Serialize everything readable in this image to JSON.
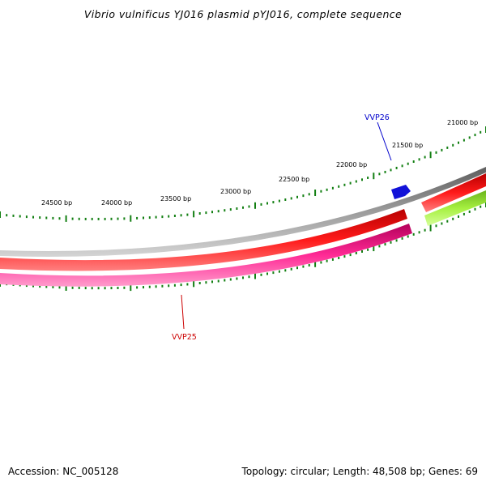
{
  "title": "Vibrio vulnificus YJ016 plasmid pYJ016, complete sequence",
  "footer": {
    "accession": "Accession: NC_005128",
    "summary": "Topology: circular; Length: 48,508 bp; Genes: 69"
  },
  "ruler": {
    "labels": [
      "21000 bp",
      "21500 bp",
      "22000 bp",
      "22500 bp",
      "23000 bp",
      "23500 bp",
      "24000 bp",
      "24500 bp"
    ],
    "color": "#127f12"
  },
  "gene_labels": [
    {
      "text": "VVP26",
      "color": "#0000cc"
    },
    {
      "text": "VVP25",
      "color": "#cc0000"
    }
  ],
  "colors": {
    "backbone": "#8c8c8c",
    "forward_cds": "#ff1414",
    "reverse_cds": "#ff3ca0",
    "other_feature": "#9cec3c",
    "labeled_gene": "#1212d8"
  }
}
